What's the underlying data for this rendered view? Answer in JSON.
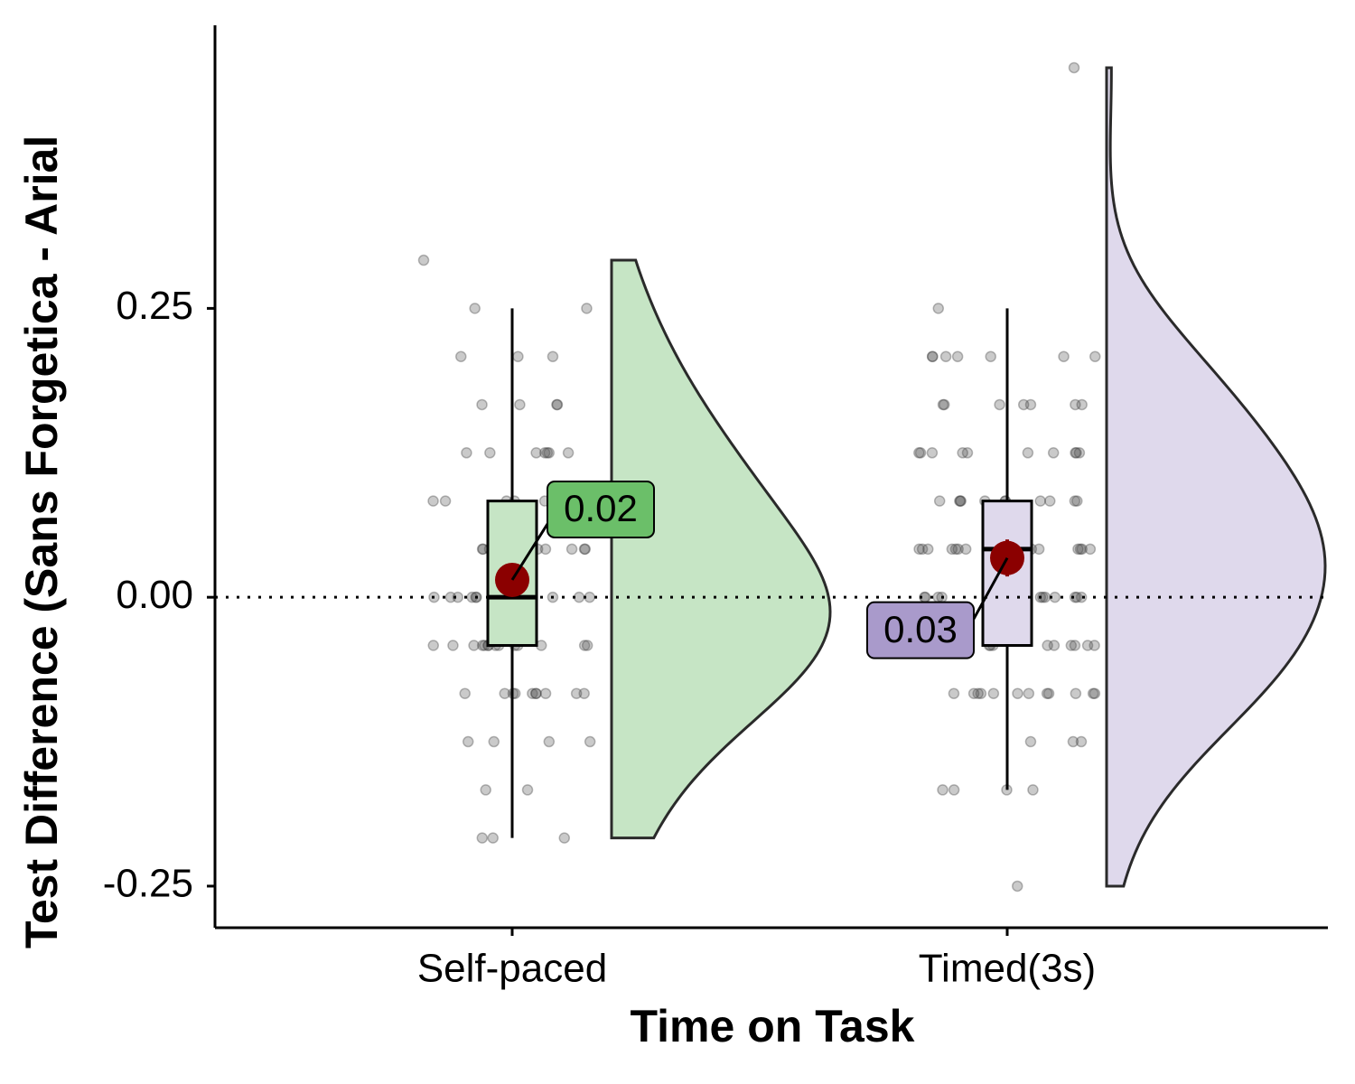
{
  "chart_data": {
    "type": "raincloud",
    "y_label": "Test Difference (Sans Forgetica - Arial",
    "x_label": "Time on Task",
    "categories": [
      "Self-paced",
      "Timed(3s)"
    ],
    "ylim": [
      -0.286,
      0.495
    ],
    "yticks": [
      -0.25,
      {
        "value": 0,
        "label": "0.00"
      },
      0.25
    ],
    "reference_line": 0,
    "groups": [
      {
        "name": "Self-paced",
        "color": "#c6e5c5",
        "label_color": "#6bbf69",
        "points": [
          0.2917,
          0.25,
          0.25,
          0.2083,
          0.2083,
          0.2083,
          0.1667,
          0.1667,
          0.1667,
          0.1667,
          0.125,
          0.125,
          0.125,
          0.125,
          0.125,
          0.125,
          0.125,
          0.0833,
          0.0833,
          0.0833,
          0.0833,
          0.0833,
          0.0833,
          0.0833,
          0.0833,
          0.0417,
          0.0417,
          0.0417,
          0.0417,
          0.0417,
          0.0417,
          0.0417,
          0.0417,
          0.0417,
          0,
          0,
          0,
          0,
          0,
          0,
          0,
          0,
          0,
          0,
          0,
          0,
          0,
          0,
          -0.0417,
          -0.0417,
          -0.0417,
          -0.0417,
          -0.0417,
          -0.0417,
          -0.0417,
          -0.0417,
          -0.0417,
          -0.0417,
          -0.0417,
          -0.0417,
          -0.0417,
          -0.0417,
          -0.0833,
          -0.0833,
          -0.0833,
          -0.0833,
          -0.0833,
          -0.0833,
          -0.0833,
          -0.0833,
          -0.0833,
          -0.0833,
          -0.125,
          -0.125,
          -0.125,
          -0.125,
          -0.1667,
          -0.1667,
          -0.2083,
          -0.2083,
          -0.2083
        ],
        "box": {
          "whisker_low": -0.2083,
          "q1": -0.0417,
          "median": 0,
          "q3": 0.0833,
          "whisker_high": 0.25
        },
        "mean": 0.015,
        "mean_se": 0.012,
        "mean_label": "0.02"
      },
      {
        "name": "Timed(3s)",
        "color": "#dfd9ec",
        "label_color": "#a99acb",
        "points": [
          0.4583,
          0.25,
          0.2083,
          0.2083,
          0.2083,
          0.2083,
          0.2083,
          0.2083,
          0.2083,
          0.1667,
          0.1667,
          0.1667,
          0.1667,
          0.1667,
          0.1667,
          0.1667,
          0.125,
          0.125,
          0.125,
          0.125,
          0.125,
          0.125,
          0.125,
          0.125,
          0.125,
          0.125,
          0.0833,
          0.0833,
          0.0833,
          0.0833,
          0.0833,
          0.0833,
          0.0833,
          0.0833,
          0.0833,
          0.0833,
          0.0833,
          0.0417,
          0.0417,
          0.0417,
          0.0417,
          0.0417,
          0.0417,
          0.0417,
          0.0417,
          0.0417,
          0.0417,
          0.0417,
          0.0417,
          0.0417,
          0.0417,
          0.0417,
          0,
          0,
          0,
          0,
          0,
          0,
          0,
          0,
          0,
          0,
          0,
          0,
          -0.0417,
          -0.0417,
          -0.0417,
          -0.0417,
          -0.0417,
          -0.0417,
          -0.0417,
          -0.0417,
          -0.0417,
          -0.0417,
          -0.0417,
          -0.0833,
          -0.0833,
          -0.0833,
          -0.0833,
          -0.0833,
          -0.0833,
          -0.0833,
          -0.0833,
          -0.0833,
          -0.0833,
          -0.0833,
          -0.0833,
          -0.125,
          -0.125,
          -0.125,
          -0.1667,
          -0.1667,
          -0.1667,
          -0.1667,
          -0.25
        ],
        "box": {
          "whisker_low": -0.1667,
          "q1": -0.0417,
          "median": 0.0417,
          "q3": 0.0833,
          "whisker_high": 0.25
        },
        "mean": 0.034,
        "mean_se": 0.016,
        "mean_label": "0.03"
      }
    ]
  }
}
